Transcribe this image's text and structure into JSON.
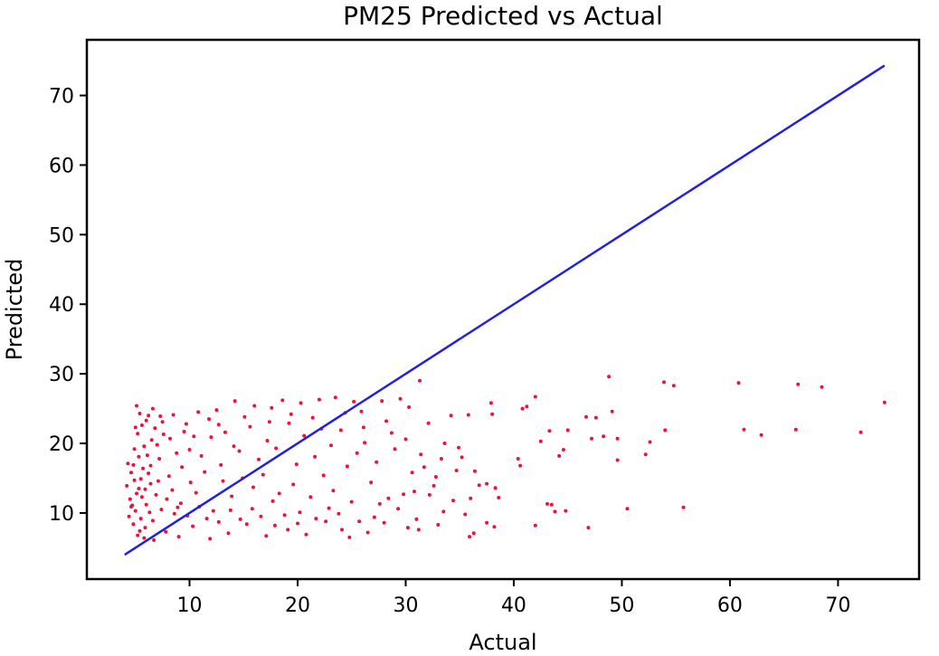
{
  "chart_data": {
    "type": "scatter",
    "title": "PM25 Predicted vs Actual",
    "xlabel": "Actual",
    "ylabel": "Predicted",
    "xlim": [
      0.5,
      77.5
    ],
    "ylim": [
      0.5,
      78.0
    ],
    "x_ticks": [
      10,
      20,
      30,
      40,
      50,
      60,
      70
    ],
    "y_ticks": [
      10,
      20,
      30,
      40,
      50,
      60,
      70
    ],
    "grid": false,
    "point_color": "#f0103c",
    "line_color": "#1f1fe8",
    "reference_line": {
      "x": [
        4.0,
        74.3
      ],
      "y": [
        4.0,
        74.3
      ]
    },
    "series": [
      {
        "values": [
          [
            48.8,
            29.6
          ],
          [
            31.3,
            29.0
          ],
          [
            53.9,
            28.8
          ],
          [
            54.8,
            28.3
          ],
          [
            60.8,
            28.7
          ],
          [
            66.3,
            28.5
          ],
          [
            68.5,
            28.1
          ],
          [
            74.3,
            25.9
          ],
          [
            42.0,
            26.7
          ],
          [
            41.2,
            25.3
          ],
          [
            40.8,
            25.0
          ],
          [
            37.9,
            25.8
          ],
          [
            35.8,
            24.1
          ],
          [
            34.2,
            24.0
          ],
          [
            38.0,
            24.2
          ],
          [
            46.7,
            23.8
          ],
          [
            47.6,
            23.7
          ],
          [
            49.1,
            24.6
          ],
          [
            47.2,
            20.7
          ],
          [
            49.6,
            20.7
          ],
          [
            49.6,
            17.6
          ],
          [
            48.3,
            21.0
          ],
          [
            52.6,
            20.2
          ],
          [
            52.2,
            18.4
          ],
          [
            54.0,
            21.9
          ],
          [
            61.3,
            22.0
          ],
          [
            62.9,
            21.2
          ],
          [
            66.1,
            22.0
          ],
          [
            72.1,
            21.6
          ],
          [
            43.3,
            21.8
          ],
          [
            45.0,
            21.9
          ],
          [
            44.6,
            19.1
          ],
          [
            44.2,
            18.2
          ],
          [
            42.5,
            20.3
          ],
          [
            40.4,
            17.8
          ],
          [
            40.6,
            16.8
          ],
          [
            43.1,
            11.3
          ],
          [
            43.5,
            11.2
          ],
          [
            43.8,
            10.2
          ],
          [
            44.8,
            10.3
          ],
          [
            42.0,
            8.2
          ],
          [
            46.9,
            7.9
          ],
          [
            50.5,
            10.6
          ],
          [
            55.7,
            10.8
          ],
          [
            38.2,
            8.0
          ],
          [
            35.9,
            6.6
          ],
          [
            36.3,
            7.1
          ],
          [
            37.5,
            8.6
          ],
          [
            36.8,
            14.0
          ],
          [
            37.5,
            14.2
          ],
          [
            38.3,
            13.6
          ],
          [
            36.0,
            12.1
          ],
          [
            33.5,
            10.2
          ],
          [
            32.2,
            12.6
          ],
          [
            30.2,
            7.9
          ],
          [
            31.0,
            9.1
          ],
          [
            5.1,
            25.4
          ],
          [
            6.2,
            24.0
          ],
          [
            7.5,
            23.1
          ],
          [
            10.8,
            24.5
          ],
          [
            12.5,
            24.8
          ],
          [
            14.2,
            26.1
          ],
          [
            16.0,
            25.4
          ],
          [
            18.6,
            26.2
          ],
          [
            20.3,
            25.8
          ],
          [
            22.0,
            26.3
          ],
          [
            23.5,
            26.6
          ],
          [
            25.2,
            26.0
          ],
          [
            27.8,
            26.1
          ],
          [
            29.5,
            26.4
          ],
          [
            30.3,
            25.2
          ],
          [
            32.1,
            22.9
          ],
          [
            28.7,
            21.5
          ],
          [
            26.1,
            22.3
          ],
          [
            24.4,
            24.4
          ],
          [
            21.4,
            23.7
          ],
          [
            19.2,
            22.9
          ],
          [
            17.4,
            23.1
          ],
          [
            15.6,
            22.4
          ],
          [
            13.3,
            21.6
          ],
          [
            11.8,
            23.5
          ],
          [
            9.7,
            22.8
          ],
          [
            8.2,
            20.7
          ],
          [
            7.0,
            19.8
          ],
          [
            29.0,
            19.2
          ],
          [
            31.4,
            18.4
          ],
          [
            33.6,
            20.0
          ],
          [
            35.2,
            18.0
          ],
          [
            34.7,
            16.1
          ],
          [
            32.8,
            15.2
          ],
          [
            30.6,
            15.8
          ],
          [
            27.3,
            17.3
          ],
          [
            25.5,
            18.6
          ],
          [
            23.1,
            19.7
          ],
          [
            21.6,
            18.1
          ],
          [
            19.9,
            17.0
          ],
          [
            18.0,
            19.3
          ],
          [
            16.4,
            17.7
          ],
          [
            14.6,
            18.9
          ],
          [
            12.9,
            16.9
          ],
          [
            11.1,
            18.2
          ],
          [
            9.3,
            16.6
          ],
          [
            8.1,
            15.3
          ],
          [
            7.2,
            17.8
          ],
          [
            6.4,
            14.2
          ],
          [
            26.8,
            14.4
          ],
          [
            28.4,
            12.1
          ],
          [
            30.8,
            13.1
          ],
          [
            32.6,
            13.9
          ],
          [
            34.4,
            11.8
          ],
          [
            35.5,
            9.8
          ],
          [
            33.0,
            8.3
          ],
          [
            31.2,
            7.6
          ],
          [
            29.3,
            10.6
          ],
          [
            27.1,
            9.4
          ],
          [
            25.0,
            11.6
          ],
          [
            23.3,
            13.2
          ],
          [
            21.2,
            12.3
          ],
          [
            19.6,
            14.1
          ],
          [
            17.7,
            11.7
          ],
          [
            15.9,
            13.7
          ],
          [
            13.9,
            12.4
          ],
          [
            12.2,
            10.3
          ],
          [
            10.6,
            12.9
          ],
          [
            9.2,
            11.4
          ],
          [
            8.4,
            13.3
          ],
          [
            24.1,
            7.6
          ],
          [
            22.6,
            8.8
          ],
          [
            20.8,
            6.9
          ],
          [
            18.8,
            9.7
          ],
          [
            17.1,
            6.7
          ],
          [
            15.3,
            8.4
          ],
          [
            13.6,
            7.1
          ],
          [
            11.9,
            6.3
          ],
          [
            10.3,
            8.1
          ],
          [
            9.0,
            6.6
          ],
          [
            7.8,
            7.3
          ],
          [
            6.7,
            6.1
          ],
          [
            5.9,
            7.9
          ],
          [
            5.2,
            6.8
          ],
          [
            24.8,
            6.5
          ],
          [
            26.5,
            7.2
          ],
          [
            28.0,
            8.6
          ],
          [
            22.9,
            10.7
          ],
          [
            20.2,
            10.1
          ],
          [
            18.3,
            12.8
          ],
          [
            16.8,
            15.5
          ],
          [
            14.9,
            15.0
          ],
          [
            13.1,
            14.6
          ],
          [
            11.4,
            15.9
          ],
          [
            10.1,
            14.4
          ],
          [
            8.8,
            18.6
          ],
          [
            22.4,
            15.4
          ],
          [
            24.6,
            16.7
          ],
          [
            26.2,
            20.1
          ],
          [
            20.6,
            21.1
          ],
          [
            17.2,
            20.4
          ],
          [
            14.1,
            19.6
          ],
          [
            12.0,
            20.9
          ],
          [
            10.0,
            19.1
          ],
          [
            9.5,
            21.7
          ],
          [
            4.3,
            17.1
          ],
          [
            4.6,
            15.8
          ],
          [
            4.9,
            14.7
          ],
          [
            5.3,
            13.5
          ],
          [
            5.6,
            12.3
          ],
          [
            6.0,
            11.2
          ],
          [
            6.3,
            10.1
          ],
          [
            4.4,
            9.5
          ],
          [
            4.8,
            8.4
          ],
          [
            5.4,
            7.4
          ],
          [
            5.8,
            6.4
          ],
          [
            6.6,
            8.9
          ],
          [
            6.9,
            12.6
          ],
          [
            7.4,
            10.5
          ],
          [
            4.5,
            12.0
          ],
          [
            4.7,
            11.1
          ],
          [
            5.0,
            10.3
          ],
          [
            5.5,
            9.2
          ],
          [
            5.7,
            16.4
          ],
          [
            6.1,
            18.3
          ],
          [
            6.5,
            20.5
          ],
          [
            4.2,
            13.9
          ],
          [
            4.9,
            19.2
          ],
          [
            5.2,
            21.4
          ],
          [
            5.6,
            22.6
          ],
          [
            6.8,
            22.2
          ],
          [
            7.6,
            21.3
          ],
          [
            8.6,
            9.9
          ],
          [
            4.6,
            10.9
          ],
          [
            5.1,
            12.8
          ],
          [
            5.5,
            14.9
          ],
          [
            5.9,
            13.4
          ],
          [
            6.2,
            15.7
          ],
          [
            4.8,
            16.9
          ],
          [
            5.3,
            18.1
          ],
          [
            5.8,
            19.6
          ],
          [
            6.4,
            16.8
          ],
          [
            7.1,
            14.6
          ],
          [
            7.9,
            12.0
          ],
          [
            8.9,
            10.8
          ],
          [
            9.8,
            9.6
          ],
          [
            10.9,
            10.9
          ],
          [
            11.6,
            9.2
          ],
          [
            12.7,
            8.7
          ],
          [
            13.8,
            10.4
          ],
          [
            14.7,
            9.1
          ],
          [
            15.8,
            10.6
          ],
          [
            16.6,
            9.5
          ],
          [
            17.9,
            8.2
          ],
          [
            19.1,
            7.6
          ],
          [
            20.0,
            8.5
          ],
          [
            21.7,
            9.2
          ],
          [
            23.8,
            9.9
          ],
          [
            25.7,
            8.8
          ],
          [
            27.6,
            11.3
          ],
          [
            29.8,
            12.7
          ],
          [
            31.7,
            16.6
          ],
          [
            33.3,
            17.8
          ],
          [
            34.9,
            19.4
          ],
          [
            36.4,
            16.0
          ],
          [
            38.6,
            12.2
          ],
          [
            30.0,
            20.6
          ],
          [
            28.2,
            23.2
          ],
          [
            25.9,
            24.6
          ],
          [
            24.0,
            21.9
          ],
          [
            22.2,
            22.1
          ],
          [
            19.4,
            24.2
          ],
          [
            17.6,
            25.1
          ],
          [
            15.1,
            23.8
          ],
          [
            12.7,
            22.7
          ],
          [
            10.4,
            21.0
          ],
          [
            8.5,
            24.1
          ],
          [
            7.3,
            23.9
          ],
          [
            6.6,
            25.0
          ],
          [
            5.4,
            24.3
          ],
          [
            6.0,
            23.3
          ],
          [
            5.0,
            22.3
          ]
        ]
      }
    ]
  }
}
